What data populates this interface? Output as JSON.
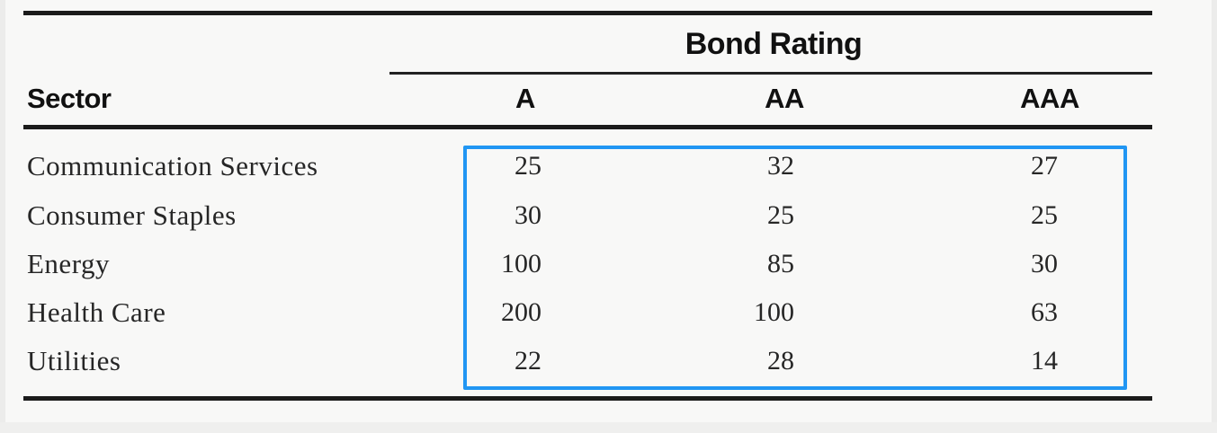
{
  "chart_data": {
    "type": "table",
    "title": "Bond Rating",
    "row_header": "Sector",
    "columns": [
      "A",
      "AA",
      "AAA"
    ],
    "rows": [
      {
        "sector": "Communication Services",
        "values": [
          25,
          32,
          27
        ]
      },
      {
        "sector": "Consumer Staples",
        "values": [
          30,
          25,
          25
        ]
      },
      {
        "sector": "Energy",
        "values": [
          100,
          85,
          30
        ]
      },
      {
        "sector": "Health Care",
        "values": [
          200,
          100,
          63
        ]
      },
      {
        "sector": "Utilities",
        "values": [
          22,
          28,
          14
        ]
      }
    ],
    "layout": "rating columns span under the centered 'Bond Rating' heading; numeric cells outlined by a blue highlight rectangle"
  },
  "highlight": {
    "color": "#2196f3"
  },
  "colors": {
    "rule": "#1b1b1b",
    "text": "#262626",
    "background": "#f8f8f7"
  }
}
